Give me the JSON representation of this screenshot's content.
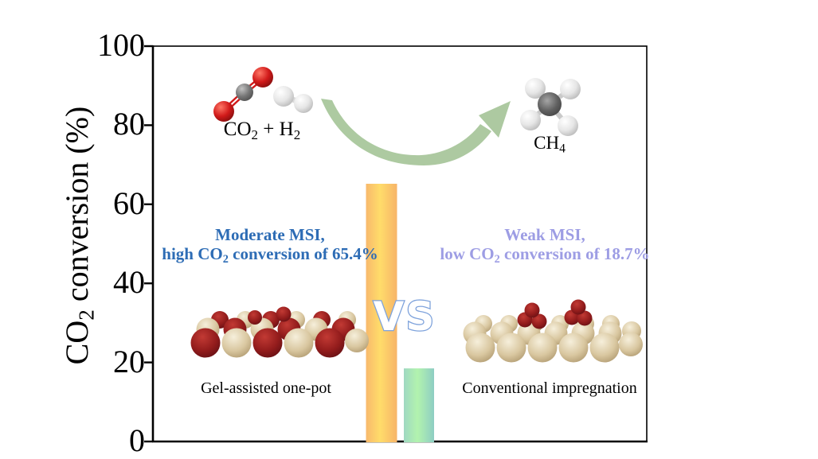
{
  "chart_data": {
    "type": "bar",
    "categories": [
      "Gel-assisted one-pot",
      "Conventional impregnation"
    ],
    "values": [
      65.4,
      18.7
    ],
    "title": "",
    "xlabel": "",
    "ylabel": "CO2 conversion (%)",
    "ylim": [
      0,
      100
    ],
    "yticks": [
      0,
      20,
      40,
      60,
      80,
      100
    ],
    "grid": false,
    "legend": false,
    "bar_colors": [
      "#ffd96a",
      "#aef0ad"
    ]
  },
  "figure": {
    "y_axis": {
      "label_pre": "CO",
      "label_sub": "2",
      "label_post": " conversion (%)",
      "ticks": [
        "100",
        "80",
        "60",
        "40",
        "20",
        "0"
      ]
    },
    "reaction": {
      "reactants_pre": "CO",
      "reactants_sub": "2",
      "reactants_plus": " + H",
      "reactants_sub2": "2",
      "product_pre": "CH",
      "product_sub": "4"
    },
    "annotation_left": {
      "line1": "Moderate MSI,",
      "line2_pre": "high CO",
      "line2_sub": "2",
      "line2_post": " conversion of 65.4%"
    },
    "annotation_right": {
      "line1": "Weak MSI,",
      "line2_pre": "low CO",
      "line2_sub": "2",
      "line2_post": " conversion of 18.7%"
    },
    "vs_label": "VS",
    "method_left": "Gel-assisted one-pot",
    "method_right": "Conventional impregnation"
  },
  "colors": {
    "annotation_left": "#2d6cb5",
    "annotation_right": "#9d9de4",
    "vs_outline": "#7fa3dc",
    "arrow_green": "#a9c79c",
    "bar_orange_edge": "#f8b96c",
    "bar_orange_center": "#ffdc6a",
    "bar_green_edge": "#9fd8c2",
    "bar_green_center": "#b2f3ae",
    "axis": "#000000"
  }
}
